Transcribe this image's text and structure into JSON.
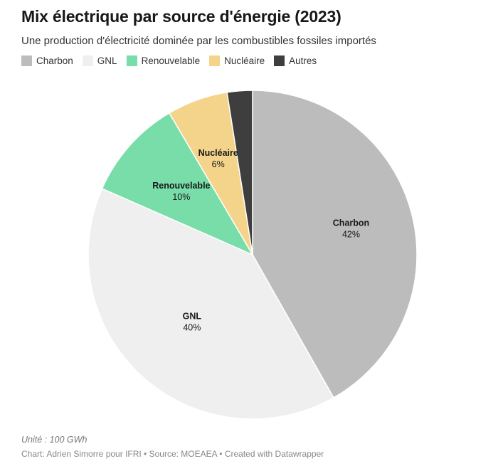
{
  "chart_data": {
    "type": "pie",
    "title": "Mix électrique par source d'énergie (2023)",
    "subtitle": "Une production d'électricité dominée par les combustibles fossiles importés",
    "slices": [
      {
        "label": "Charbon",
        "value": 42,
        "percent_label": "42%",
        "color": "#bcbcbc"
      },
      {
        "label": "GNL",
        "value": 40,
        "percent_label": "40%",
        "color": "#efefef"
      },
      {
        "label": "Renouvelable",
        "value": 10,
        "percent_label": "10%",
        "color": "#78dda8"
      },
      {
        "label": "Nucléaire",
        "value": 6,
        "percent_label": "6%",
        "color": "#f3d48a"
      },
      {
        "label": "Autres",
        "value": 2.5,
        "percent_label": "",
        "color": "#3e3e3e"
      }
    ],
    "legend": [
      "Charbon",
      "GNL",
      "Renouvelable",
      "Nucléaire",
      "Autres"
    ],
    "note": "Unité : 100 GWh",
    "credit": "Chart: Adrien Simorre pour IFRI • Source: MOEAEA • Created with Datawrapper"
  }
}
